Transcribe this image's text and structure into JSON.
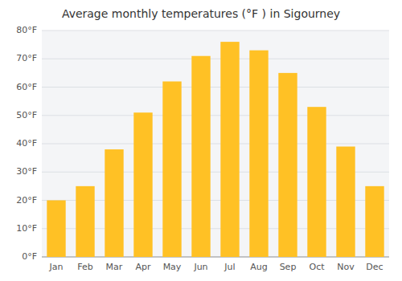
{
  "chart_data": {
    "type": "bar",
    "title": "Average monthly temperatures (°F ) in Sigourney",
    "categories": [
      "Jan",
      "Feb",
      "Mar",
      "Apr",
      "May",
      "Jun",
      "Jul",
      "Aug",
      "Sep",
      "Oct",
      "Nov",
      "Dec"
    ],
    "values": [
      20,
      25,
      38,
      51,
      62,
      71,
      76,
      73,
      65,
      53,
      39,
      25
    ],
    "color": "#FFC125",
    "ylim": [
      0,
      80
    ],
    "yticks": [
      {
        "value": 0,
        "label": "0°F"
      },
      {
        "value": 10,
        "label": "10°F"
      },
      {
        "value": 20,
        "label": "20°F"
      },
      {
        "value": 30,
        "label": "30°F"
      },
      {
        "value": 40,
        "label": "40°F"
      },
      {
        "value": 50,
        "label": "50°F"
      },
      {
        "value": 60,
        "label": "60°F"
      },
      {
        "value": 70,
        "label": "70°F"
      },
      {
        "value": 80,
        "label": "80°F"
      }
    ],
    "grid": true
  }
}
